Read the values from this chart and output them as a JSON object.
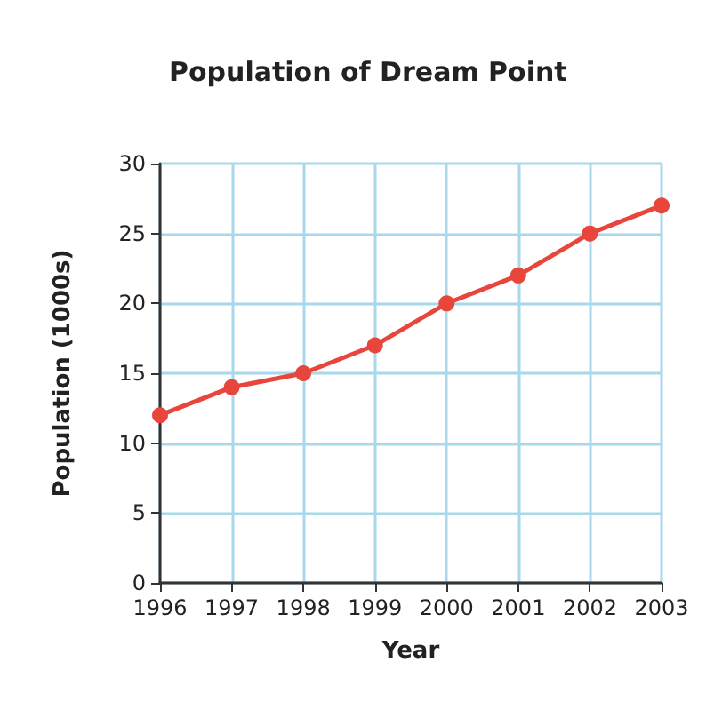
{
  "chart_data": {
    "type": "line",
    "title": "Population of Dream Point",
    "xlabel": "Year",
    "ylabel": "Population (1000s)",
    "categories": [
      "1996",
      "1997",
      "1998",
      "1999",
      "2000",
      "2001",
      "2002",
      "2003"
    ],
    "series": [
      {
        "color": "#e8463c",
        "values": [
          12,
          14,
          15,
          17,
          20,
          22,
          25,
          27
        ]
      }
    ],
    "ylim": [
      0,
      30
    ],
    "yticks": [
      0,
      5,
      10,
      15,
      20,
      25,
      30
    ],
    "grid": true,
    "marker": "circle",
    "line_style": "solid"
  }
}
